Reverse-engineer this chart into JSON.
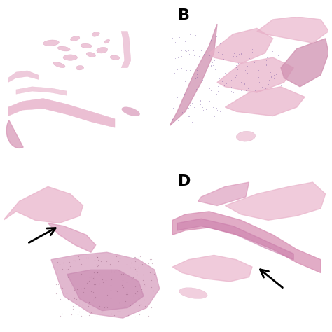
{
  "background_color": "#ffffff",
  "panel_labels": [
    "B",
    "D"
  ],
  "label_fontsize": 16,
  "label_fontweight": "bold",
  "panel_bg": "#ffffff",
  "tissue_pink_light": "#f0c8d8",
  "tissue_pink_mid": "#e8a8c4",
  "tissue_pink_dark": "#d080a8",
  "tissue_purple": "#c890c0"
}
